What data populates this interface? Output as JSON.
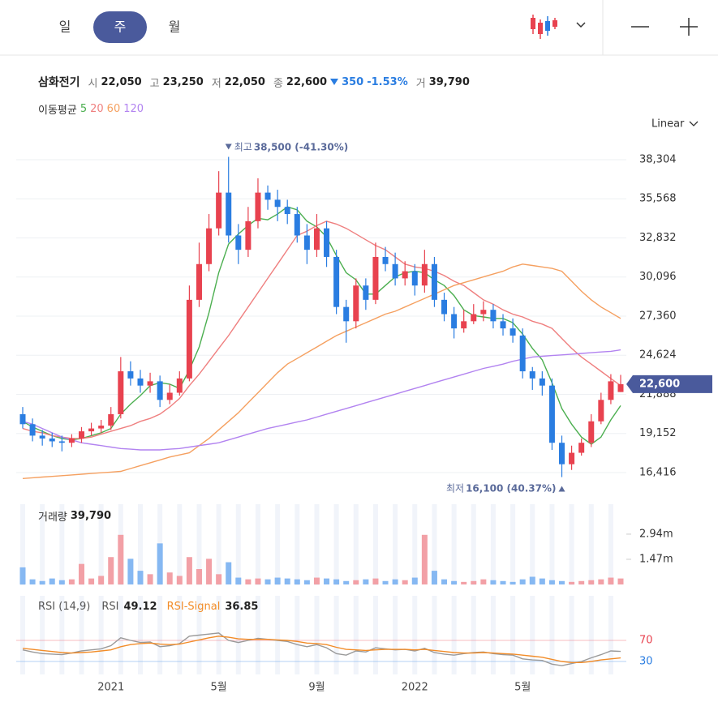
{
  "toolbar": {
    "periods": [
      "일",
      "주",
      "월"
    ],
    "active_index": 1
  },
  "scale_mode": "Linear",
  "quote": {
    "name": "삼화전기",
    "fields": [
      {
        "label": "시",
        "value": "22,050"
      },
      {
        "label": "고",
        "value": "23,250"
      },
      {
        "label": "저",
        "value": "22,050"
      },
      {
        "label": "종",
        "value": "22,600"
      }
    ],
    "change": "350",
    "change_pct": "-1.53%",
    "volume_label": "거",
    "volume": "39,790"
  },
  "ma_label": "이동평균",
  "chart_data": [
    {
      "type": "candlestick",
      "categories": [
        null,
        null,
        null,
        null,
        null,
        null,
        null,
        null,
        null,
        "2021",
        null,
        null,
        null,
        null,
        null,
        null,
        null,
        null,
        null,
        null,
        "5월",
        null,
        null,
        null,
        null,
        null,
        null,
        null,
        null,
        null,
        "9월",
        null,
        null,
        null,
        null,
        null,
        null,
        null,
        null,
        null,
        "2022",
        null,
        null,
        null,
        null,
        null,
        null,
        null,
        null,
        null,
        null,
        "5월",
        null,
        null,
        null,
        null,
        null,
        null,
        null,
        null,
        null,
        null
      ],
      "open": [
        20500,
        19800,
        19000,
        18800,
        18600,
        18500,
        18800,
        19300,
        19500,
        19700,
        20500,
        23500,
        23000,
        22500,
        22800,
        21500,
        22000,
        23000,
        28500,
        31000,
        33500,
        36000,
        33000,
        32000,
        34000,
        36000,
        35500,
        35000,
        34500,
        33000,
        32000,
        33500,
        31500,
        28000,
        27000,
        29500,
        28500,
        31500,
        31000,
        30000,
        30500,
        29500,
        31000,
        28500,
        27500,
        26500,
        27000,
        27500,
        27800,
        27000,
        26500,
        26000,
        23500,
        23000,
        22500,
        18500,
        17000,
        17800,
        18500,
        20000,
        21500,
        22050
      ],
      "high": [
        21000,
        20200,
        19400,
        19200,
        19000,
        19100,
        19600,
        19900,
        20100,
        21000,
        24500,
        24200,
        23600,
        23400,
        23200,
        22600,
        23500,
        29500,
        32500,
        34500,
        37500,
        38500,
        33800,
        35000,
        37000,
        36500,
        36200,
        35500,
        35000,
        33800,
        34500,
        34000,
        32000,
        28500,
        30000,
        30000,
        32500,
        32200,
        31800,
        31200,
        31000,
        32000,
        31500,
        29000,
        28000,
        27800,
        28200,
        28400,
        28200,
        27500,
        27200,
        26500,
        23800,
        23500,
        23000,
        19000,
        18300,
        18800,
        20500,
        22000,
        23300,
        23250
      ],
      "low": [
        19500,
        18600,
        18300,
        18200,
        17900,
        18200,
        18500,
        19000,
        19200,
        19400,
        20200,
        22500,
        22000,
        22000,
        21000,
        21200,
        21800,
        22800,
        28000,
        30500,
        33000,
        32500,
        31000,
        31500,
        33500,
        34800,
        34000,
        33800,
        32500,
        31000,
        31500,
        30800,
        27500,
        25500,
        26500,
        27800,
        28200,
        30500,
        29500,
        29500,
        28800,
        29000,
        28000,
        27000,
        25800,
        26200,
        26800,
        27000,
        26500,
        26000,
        25500,
        23000,
        22200,
        21800,
        18000,
        16100,
        16600,
        17600,
        18200,
        19800,
        21200,
        22050
      ],
      "close": [
        19800,
        19000,
        18800,
        18600,
        18500,
        18800,
        19300,
        19500,
        19700,
        20500,
        23500,
        23000,
        22500,
        22800,
        21500,
        22000,
        23000,
        28500,
        31000,
        33500,
        36000,
        33000,
        32000,
        34000,
        36000,
        35500,
        35000,
        34500,
        33000,
        32000,
        33500,
        31500,
        28000,
        27000,
        29500,
        28500,
        31500,
        31000,
        30000,
        30500,
        29500,
        31000,
        28500,
        27500,
        26500,
        27000,
        27500,
        27800,
        27000,
        26500,
        26000,
        23500,
        23000,
        22500,
        18500,
        17000,
        17800,
        18500,
        20000,
        21500,
        22800,
        22600
      ],
      "up_color": "#e8424f",
      "down_color": "#2a7de1",
      "series": [
        {
          "name": "5",
          "color": "#4caf50",
          "values": [
            20000,
            19600,
            19300,
            19000,
            18800,
            18700,
            18800,
            19000,
            19200,
            19500,
            20500,
            21200,
            21800,
            22500,
            22700,
            22600,
            22300,
            23600,
            25200,
            27600,
            30400,
            32400,
            33100,
            33700,
            34200,
            34100,
            34500,
            35000,
            34800,
            34000,
            33600,
            32900,
            31600,
            30400,
            29900,
            28900,
            28900,
            29500,
            30100,
            30400,
            30500,
            30400,
            29900,
            29500,
            28800,
            27800,
            27400,
            27300,
            27200,
            27200,
            26900,
            26100,
            25100,
            24300,
            22700,
            20900,
            19800,
            18900,
            18400,
            18900,
            20100,
            21100
          ]
        },
        {
          "name": "20",
          "color": "#ef7f7f",
          "values": [
            19500,
            19300,
            19200,
            19000,
            18900,
            18800,
            18800,
            18900,
            19100,
            19300,
            19500,
            19700,
            20000,
            20200,
            20500,
            21000,
            21600,
            22500,
            23300,
            24200,
            25100,
            26000,
            27000,
            28000,
            29000,
            30000,
            31000,
            32000,
            33000,
            33300,
            33700,
            34000,
            33800,
            33500,
            33100,
            32700,
            32300,
            32000,
            31500,
            31000,
            30800,
            30700,
            30500,
            30200,
            29800,
            29500,
            29000,
            28500,
            28200,
            27800,
            27500,
            27300,
            27000,
            26800,
            26500,
            25800,
            25100,
            24500,
            24000,
            23500,
            23000,
            22500
          ]
        },
        {
          "name": "60",
          "color": "#f5a060",
          "values": [
            16000,
            16050,
            16100,
            16150,
            16200,
            16250,
            16300,
            16350,
            16400,
            16450,
            16500,
            16700,
            16900,
            17100,
            17300,
            17500,
            17650,
            17800,
            18300,
            18800,
            19400,
            20000,
            20600,
            21300,
            22000,
            22700,
            23400,
            24000,
            24400,
            24800,
            25200,
            25600,
            26000,
            26300,
            26600,
            26900,
            27200,
            27500,
            27700,
            28000,
            28300,
            28600,
            28900,
            29200,
            29500,
            29700,
            29900,
            30100,
            30300,
            30500,
            30800,
            31000,
            30900,
            30800,
            30700,
            30500,
            29800,
            29100,
            28500,
            28000,
            27600,
            27200
          ]
        },
        {
          "name": "120",
          "color": "#b283f0",
          "values": [
            20000,
            19800,
            19500,
            19200,
            18900,
            18700,
            18500,
            18400,
            18300,
            18200,
            18100,
            18050,
            18000,
            18000,
            18000,
            18050,
            18100,
            18200,
            18300,
            18400,
            18500,
            18700,
            18900,
            19100,
            19300,
            19500,
            19650,
            19800,
            19950,
            20100,
            20300,
            20500,
            20700,
            20900,
            21100,
            21300,
            21500,
            21700,
            21900,
            22100,
            22300,
            22500,
            22700,
            22900,
            23100,
            23300,
            23500,
            23700,
            23850,
            24000,
            24200,
            24350,
            24500,
            24550,
            24600,
            24650,
            24700,
            24750,
            24800,
            24850,
            24900,
            25000
          ]
        }
      ],
      "ylim": [
        15450,
        39550
      ],
      "yticks": [
        {
          "value": 16416,
          "label": "16,416"
        },
        {
          "value": 19152,
          "label": "19,152"
        },
        {
          "value": 21888,
          "label": "21,888"
        },
        {
          "value": 24624,
          "label": "24,624"
        },
        {
          "value": 27360,
          "label": "27,360"
        },
        {
          "value": 30096,
          "label": "30,096"
        },
        {
          "value": 32832,
          "label": "32,832"
        },
        {
          "value": 35568,
          "label": "35,568"
        },
        {
          "value": 38304,
          "label": "38,304"
        }
      ],
      "grid": true,
      "last_price": {
        "value": 22600,
        "label": "22,600"
      },
      "annotations": {
        "max": {
          "label": "최고",
          "text": "38,500 (-41.30%)"
        },
        "min": {
          "label": "최저",
          "text": "16,100 (40.37%)"
        }
      }
    },
    {
      "type": "bar",
      "title": "거래량",
      "subtitle": "39,790",
      "up_color": "#f2a0a6",
      "down_color": "#86b8f2",
      "values": [
        1000000,
        300000,
        200000,
        350000,
        250000,
        300000,
        1200000,
        350000,
        500000,
        1600000,
        2900000,
        1500000,
        800000,
        600000,
        2400000,
        700000,
        500000,
        1600000,
        900000,
        1500000,
        600000,
        1300000,
        400000,
        300000,
        350000,
        300000,
        400000,
        350000,
        300000,
        250000,
        400000,
        350000,
        300000,
        200000,
        250000,
        300000,
        350000,
        200000,
        300000,
        250000,
        400000,
        2900000,
        800000,
        300000,
        200000,
        150000,
        200000,
        300000,
        250000,
        200000,
        150000,
        300000,
        450000,
        350000,
        250000,
        200000,
        150000,
        200000,
        250000,
        300000,
        400000,
        350000
      ],
      "ylim": [
        0,
        4690000
      ],
      "yticks": [
        {
          "value": 1470000,
          "label": "1.47m"
        },
        {
          "value": 2940000,
          "label": "2.94m"
        }
      ]
    },
    {
      "type": "line",
      "title": "RSI (14,9)",
      "series": [
        {
          "name": "RSI",
          "color": "#9a9a9a",
          "value_label": "49.12",
          "values": [
            52,
            48,
            45,
            44,
            43,
            46,
            50,
            52,
            54,
            60,
            75,
            70,
            66,
            67,
            58,
            60,
            64,
            78,
            80,
            82,
            84,
            70,
            66,
            70,
            74,
            72,
            70,
            68,
            62,
            58,
            62,
            56,
            45,
            42,
            50,
            48,
            56,
            54,
            52,
            53,
            50,
            55,
            47,
            44,
            42,
            45,
            47,
            48,
            45,
            43,
            42,
            35,
            33,
            32,
            25,
            22,
            26,
            30,
            37,
            43,
            50,
            49.12
          ]
        },
        {
          "name": "RSI-Signal",
          "color": "#f28c28",
          "value_label": "36.85",
          "values": [
            55,
            53,
            51,
            49,
            47,
            46,
            47,
            48,
            50,
            52,
            58,
            62,
            64,
            65,
            63,
            62,
            63,
            67,
            71,
            75,
            78,
            76,
            73,
            72,
            72,
            72,
            71,
            70,
            68,
            65,
            64,
            62,
            57,
            53,
            52,
            51,
            52,
            53,
            53,
            53,
            52,
            53,
            51,
            49,
            47,
            46,
            46,
            47,
            46,
            45,
            44,
            42,
            40,
            38,
            34,
            30,
            28,
            28,
            30,
            33,
            35,
            36.85
          ]
        }
      ],
      "ylim": [
        8.5,
        154.6
      ],
      "yticks": [
        70,
        30
      ],
      "tick_colors": [
        "#e8424f",
        "#2a7de1"
      ]
    }
  ]
}
